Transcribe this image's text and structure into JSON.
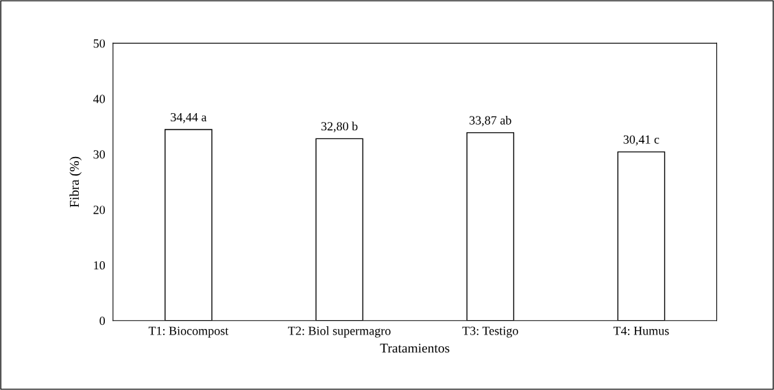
{
  "chart_data": {
    "type": "bar",
    "xlabel": "Tratamientos",
    "ylabel": "Fibra (%)",
    "categories": [
      "T1: Biocompost",
      "T2: Biol supermagro",
      "T3: Testigo",
      "T4: Humus"
    ],
    "values": [
      34.44,
      32.8,
      33.87,
      30.41
    ],
    "value_labels": [
      "34,44 a",
      "32,80 b",
      "33,87 ab",
      "30,41 c"
    ],
    "colors": [
      "#ffffff",
      "#ffffff",
      "#ffffff",
      "#ffffff"
    ],
    "ylim": [
      0,
      50
    ],
    "yticks": [
      0,
      10,
      20,
      30,
      40,
      50
    ],
    "grid": false,
    "legend": false
  }
}
